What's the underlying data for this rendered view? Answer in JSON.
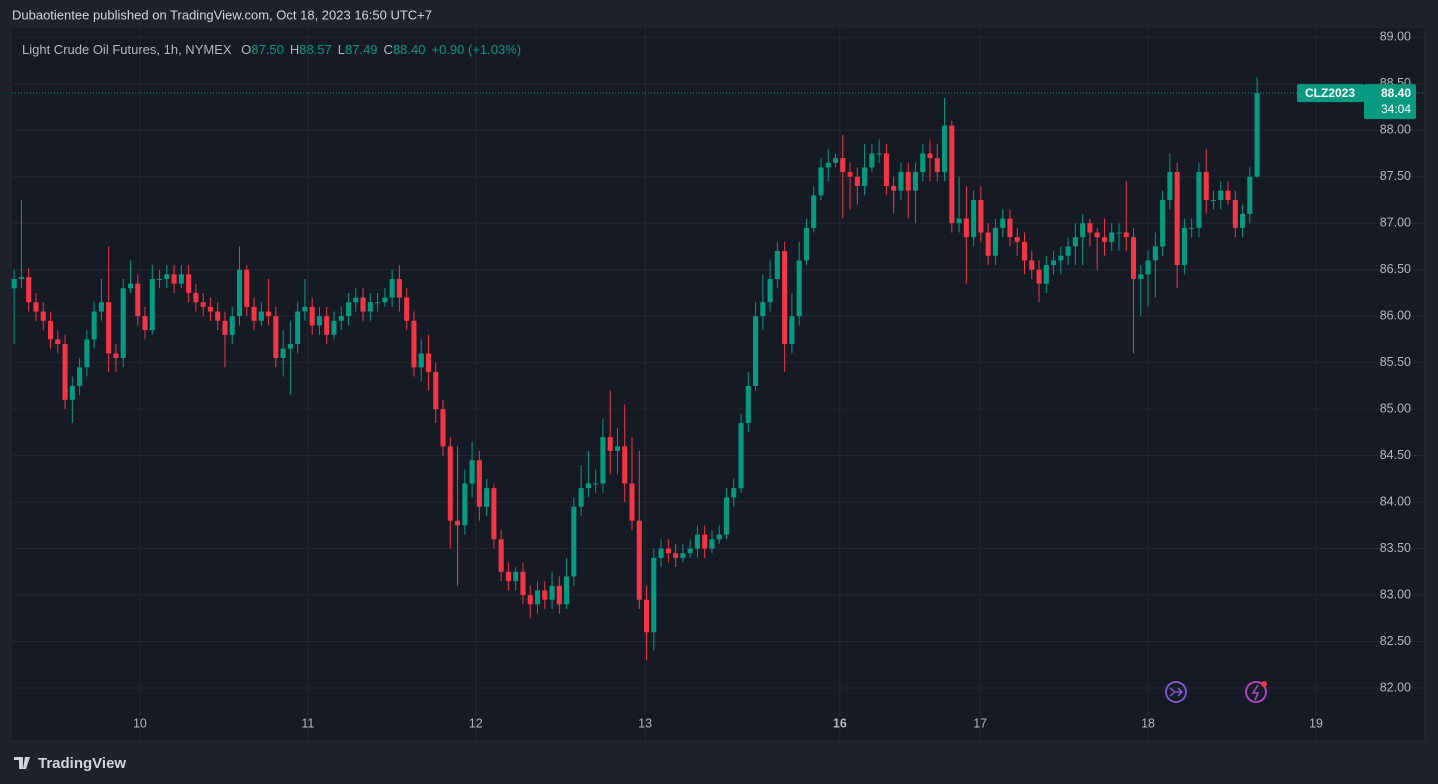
{
  "header": {
    "published": "Dubaotientee published on TradingView.com, Oct 18, 2023 16:50 UTC+7"
  },
  "footer": {
    "brand": "TradingView"
  },
  "chart_data": {
    "type": "candlestick",
    "title": "Light Crude Oil Futures, 1h, NYMEX",
    "legend": {
      "items": [
        {
          "key": "O",
          "value": "87.50"
        },
        {
          "key": "H",
          "value": "88.57"
        },
        {
          "key": "L",
          "value": "87.49"
        },
        {
          "key": "C",
          "value": "88.40"
        }
      ],
      "change": "+0.90 (+1.03%)"
    },
    "last_price": {
      "symbol": "CLZ2023",
      "countdown": "34:04"
    },
    "up_color": "#089981",
    "down_color": "#f23645",
    "grid": true,
    "xlim": [
      -0.3,
      194.1
    ],
    "xticks": [
      {
        "value": 17.3,
        "label": "10"
      },
      {
        "value": 40.4,
        "label": "11"
      },
      {
        "value": 63.5,
        "label": "12"
      },
      {
        "value": 86.8,
        "label": "13"
      },
      {
        "value": 113.6,
        "label": "16"
      },
      {
        "value": 132.9,
        "label": "17"
      },
      {
        "value": 156.0,
        "label": "18"
      },
      {
        "value": 179.1,
        "label": "19"
      }
    ],
    "ylim": [
      81.43,
      89.1
    ],
    "yticks": [
      {
        "value": 82,
        "label": "82.00"
      },
      {
        "value": 82.5,
        "label": "82.50"
      },
      {
        "value": 83,
        "label": "83.00"
      },
      {
        "value": 83.5,
        "label": "83.50"
      },
      {
        "value": 84,
        "label": "84.00"
      },
      {
        "value": 84.5,
        "label": "84.50"
      },
      {
        "value": 85,
        "label": "85.00"
      },
      {
        "value": 85.5,
        "label": "85.50"
      },
      {
        "value": 86,
        "label": "86.00"
      },
      {
        "value": 86.5,
        "label": "86.50"
      },
      {
        "value": 87,
        "label": "87.00"
      },
      {
        "value": 87.5,
        "label": "87.50"
      },
      {
        "value": 88,
        "label": "88.00"
      },
      {
        "value": 88.5,
        "label": "88.50"
      },
      {
        "value": 89,
        "label": "89.00"
      }
    ],
    "open": [
      86.3,
      86.4,
      86.42,
      86.15,
      86.05,
      85.95,
      85.75,
      85.7,
      85.1,
      85.25,
      85.45,
      85.75,
      86.05,
      86.15,
      85.6,
      85.55,
      86.3,
      86.35,
      86.0,
      85.85,
      86.4,
      86.4,
      86.45,
      86.35,
      86.45,
      86.25,
      86.15,
      86.1,
      86.05,
      85.95,
      85.8,
      86.0,
      86.5,
      86.1,
      85.95,
      86.05,
      86.0,
      85.55,
      85.65,
      85.7,
      86.05,
      86.1,
      85.9,
      86.0,
      85.8,
      85.95,
      86.0,
      86.15,
      86.2,
      86.05,
      86.15,
      86.15,
      86.2,
      86.4,
      86.2,
      85.95,
      85.45,
      85.6,
      85.4,
      85.0,
      84.6,
      83.8,
      83.75,
      84.2,
      84.45,
      83.95,
      84.15,
      83.6,
      83.25,
      83.15,
      83.25,
      83.0,
      82.9,
      83.05,
      82.95,
      83.1,
      82.9,
      83.2,
      83.95,
      84.15,
      84.2,
      84.2,
      84.7,
      84.55,
      84.6,
      84.2,
      83.8,
      82.95,
      82.6,
      83.4,
      83.5,
      83.45,
      83.4,
      83.45,
      83.5,
      83.65,
      83.5,
      83.6,
      83.65,
      84.05,
      84.15,
      84.85,
      85.25,
      86.0,
      86.15,
      86.4,
      86.7,
      85.7,
      86.0,
      86.6,
      86.95,
      87.3,
      87.6,
      87.65,
      87.7,
      87.55,
      87.5,
      87.4,
      87.6,
      87.75,
      87.75,
      87.4,
      87.35,
      87.55,
      87.35,
      87.55,
      87.75,
      87.7,
      87.55,
      88.05,
      87.0,
      87.05,
      86.85,
      87.25,
      86.9,
      86.65,
      86.95,
      87.05,
      86.85,
      86.8,
      86.6,
      86.5,
      86.35,
      86.55,
      86.6,
      86.65,
      86.75,
      86.85,
      87.0,
      86.9,
      86.85,
      86.8,
      86.9,
      86.9,
      86.85,
      86.4,
      86.45,
      86.6,
      86.75,
      87.25,
      87.55,
      86.55,
      86.95,
      86.95,
      87.55,
      87.25,
      87.25,
      87.35,
      87.25,
      86.95,
      87.1,
      87.5
    ],
    "high": [
      86.5,
      87.25,
      86.52,
      86.25,
      86.15,
      86.05,
      85.85,
      85.8,
      85.35,
      85.55,
      85.85,
      86.15,
      86.4,
      86.75,
      85.7,
      86.4,
      86.6,
      86.45,
      86.1,
      86.55,
      86.5,
      86.55,
      86.55,
      86.55,
      86.55,
      86.35,
      86.25,
      86.2,
      86.15,
      86.05,
      86.1,
      86.75,
      86.55,
      86.2,
      86.15,
      86.4,
      86.1,
      85.85,
      85.95,
      86.15,
      86.4,
      86.2,
      86.1,
      86.1,
      86.05,
      86.1,
      86.25,
      86.3,
      86.3,
      86.25,
      86.25,
      86.3,
      86.5,
      86.55,
      86.3,
      86.05,
      85.75,
      85.8,
      85.5,
      85.1,
      84.7,
      84.6,
      84.35,
      84.65,
      84.55,
      84.25,
      84.2,
      83.7,
      83.35,
      83.3,
      83.35,
      83.1,
      83.15,
      83.15,
      83.25,
      83.2,
      83.4,
      84.05,
      84.4,
      84.55,
      84.35,
      84.9,
      85.2,
      84.8,
      85.05,
      84.7,
      84.55,
      83.1,
      83.5,
      83.6,
      83.6,
      83.55,
      83.55,
      83.6,
      83.75,
      83.75,
      83.7,
      83.75,
      84.15,
      84.25,
      84.95,
      85.4,
      86.15,
      86.45,
      86.6,
      86.8,
      86.8,
      86.25,
      86.8,
      87.05,
      87.4,
      87.7,
      87.8,
      87.75,
      87.95,
      87.65,
      87.6,
      87.85,
      87.85,
      87.9,
      87.85,
      87.5,
      87.65,
      87.65,
      87.65,
      87.85,
      87.9,
      87.85,
      88.35,
      88.1,
      87.5,
      87.4,
      87.35,
      87.4,
      87.0,
      87.05,
      87.15,
      87.15,
      86.95,
      86.9,
      86.7,
      86.6,
      86.65,
      86.7,
      86.75,
      86.85,
      87.0,
      87.1,
      87.05,
      86.95,
      87.05,
      87.0,
      87.0,
      87.45,
      86.95,
      86.55,
      86.7,
      86.9,
      87.35,
      87.75,
      87.65,
      87.05,
      87.05,
      87.65,
      87.8,
      87.35,
      87.45,
      87.45,
      87.35,
      87.2,
      87.6,
      88.57
    ],
    "low": [
      85.7,
      86.3,
      86.05,
      85.95,
      85.85,
      85.65,
      85.6,
      85.0,
      84.85,
      85.15,
      85.35,
      85.65,
      85.95,
      85.4,
      85.4,
      85.45,
      86.25,
      85.9,
      85.75,
      85.8,
      86.3,
      86.3,
      86.25,
      86.3,
      86.15,
      86.05,
      86.0,
      85.95,
      85.85,
      85.45,
      85.7,
      85.9,
      86.0,
      85.85,
      85.9,
      85.9,
      85.45,
      85.35,
      85.15,
      85.6,
      85.95,
      85.8,
      85.8,
      85.7,
      85.75,
      85.85,
      85.9,
      86.05,
      85.95,
      85.95,
      86.05,
      86.1,
      86.1,
      86.05,
      85.85,
      85.35,
      85.3,
      85.2,
      84.85,
      84.5,
      83.5,
      83.1,
      83.65,
      84.05,
      83.8,
      83.85,
      83.5,
      83.15,
      83.05,
      83.05,
      82.9,
      82.75,
      82.8,
      82.85,
      82.85,
      82.8,
      82.85,
      83.1,
      83.85,
      84.05,
      84.1,
      84.1,
      84.3,
      84.3,
      84.0,
      83.7,
      82.85,
      82.3,
      82.4,
      83.3,
      83.35,
      83.3,
      83.35,
      83.4,
      83.4,
      83.4,
      83.45,
      83.55,
      83.6,
      83.95,
      84.1,
      84.75,
      85.2,
      85.85,
      86.05,
      86.3,
      85.4,
      85.6,
      85.9,
      86.55,
      86.9,
      87.25,
      87.45,
      87.6,
      87.05,
      87.15,
      87.2,
      87.3,
      87.55,
      87.65,
      87.3,
      87.1,
      87.25,
      87.05,
      87.0,
      87.45,
      87.45,
      87.45,
      87.45,
      86.9,
      86.9,
      86.35,
      86.75,
      86.8,
      86.55,
      86.55,
      86.85,
      86.75,
      86.65,
      86.45,
      86.4,
      86.15,
      86.25,
      86.45,
      86.45,
      86.55,
      86.55,
      86.55,
      86.75,
      86.5,
      86.65,
      86.7,
      86.7,
      86.7,
      85.6,
      86.0,
      86.1,
      86.2,
      86.65,
      87.15,
      86.3,
      86.45,
      86.85,
      86.85,
      87.1,
      87.15,
      87.15,
      87.2,
      86.85,
      86.85,
      87.0,
      87.49
    ],
    "close": [
      86.4,
      86.42,
      86.15,
      86.05,
      85.95,
      85.75,
      85.7,
      85.1,
      85.25,
      85.45,
      85.75,
      86.05,
      86.15,
      85.6,
      85.55,
      86.3,
      86.35,
      86.0,
      85.85,
      86.4,
      86.4,
      86.45,
      86.35,
      86.45,
      86.25,
      86.15,
      86.1,
      86.05,
      85.95,
      85.8,
      86.0,
      86.5,
      86.1,
      85.95,
      86.05,
      86.0,
      85.55,
      85.65,
      85.7,
      86.05,
      86.1,
      85.9,
      86.0,
      85.8,
      85.95,
      86.0,
      86.15,
      86.2,
      86.05,
      86.15,
      86.15,
      86.2,
      86.4,
      86.2,
      85.95,
      85.45,
      85.6,
      85.4,
      85.0,
      84.6,
      83.8,
      83.75,
      84.2,
      84.45,
      83.95,
      84.15,
      83.6,
      83.25,
      83.15,
      83.25,
      83.0,
      82.9,
      83.05,
      82.95,
      83.1,
      82.9,
      83.2,
      83.95,
      84.15,
      84.2,
      84.2,
      84.7,
      84.55,
      84.6,
      84.2,
      83.8,
      82.95,
      82.6,
      83.4,
      83.5,
      83.45,
      83.4,
      83.45,
      83.5,
      83.65,
      83.5,
      83.6,
      83.65,
      84.05,
      84.15,
      84.85,
      85.25,
      86.0,
      86.15,
      86.4,
      86.7,
      85.7,
      86.0,
      86.6,
      86.95,
      87.3,
      87.6,
      87.65,
      87.7,
      87.55,
      87.5,
      87.4,
      87.6,
      87.75,
      87.75,
      87.4,
      87.35,
      87.55,
      87.35,
      87.55,
      87.75,
      87.7,
      87.55,
      88.05,
      87.0,
      87.05,
      86.85,
      87.25,
      86.9,
      86.65,
      86.95,
      87.05,
      86.85,
      86.8,
      86.6,
      86.5,
      86.35,
      86.55,
      86.6,
      86.65,
      86.75,
      86.85,
      87.0,
      86.9,
      86.85,
      86.8,
      86.9,
      86.9,
      86.85,
      86.4,
      86.45,
      86.6,
      86.75,
      87.25,
      87.55,
      86.55,
      86.95,
      86.95,
      87.55,
      87.25,
      87.25,
      87.35,
      87.25,
      86.95,
      87.1,
      87.5,
      88.4
    ]
  }
}
